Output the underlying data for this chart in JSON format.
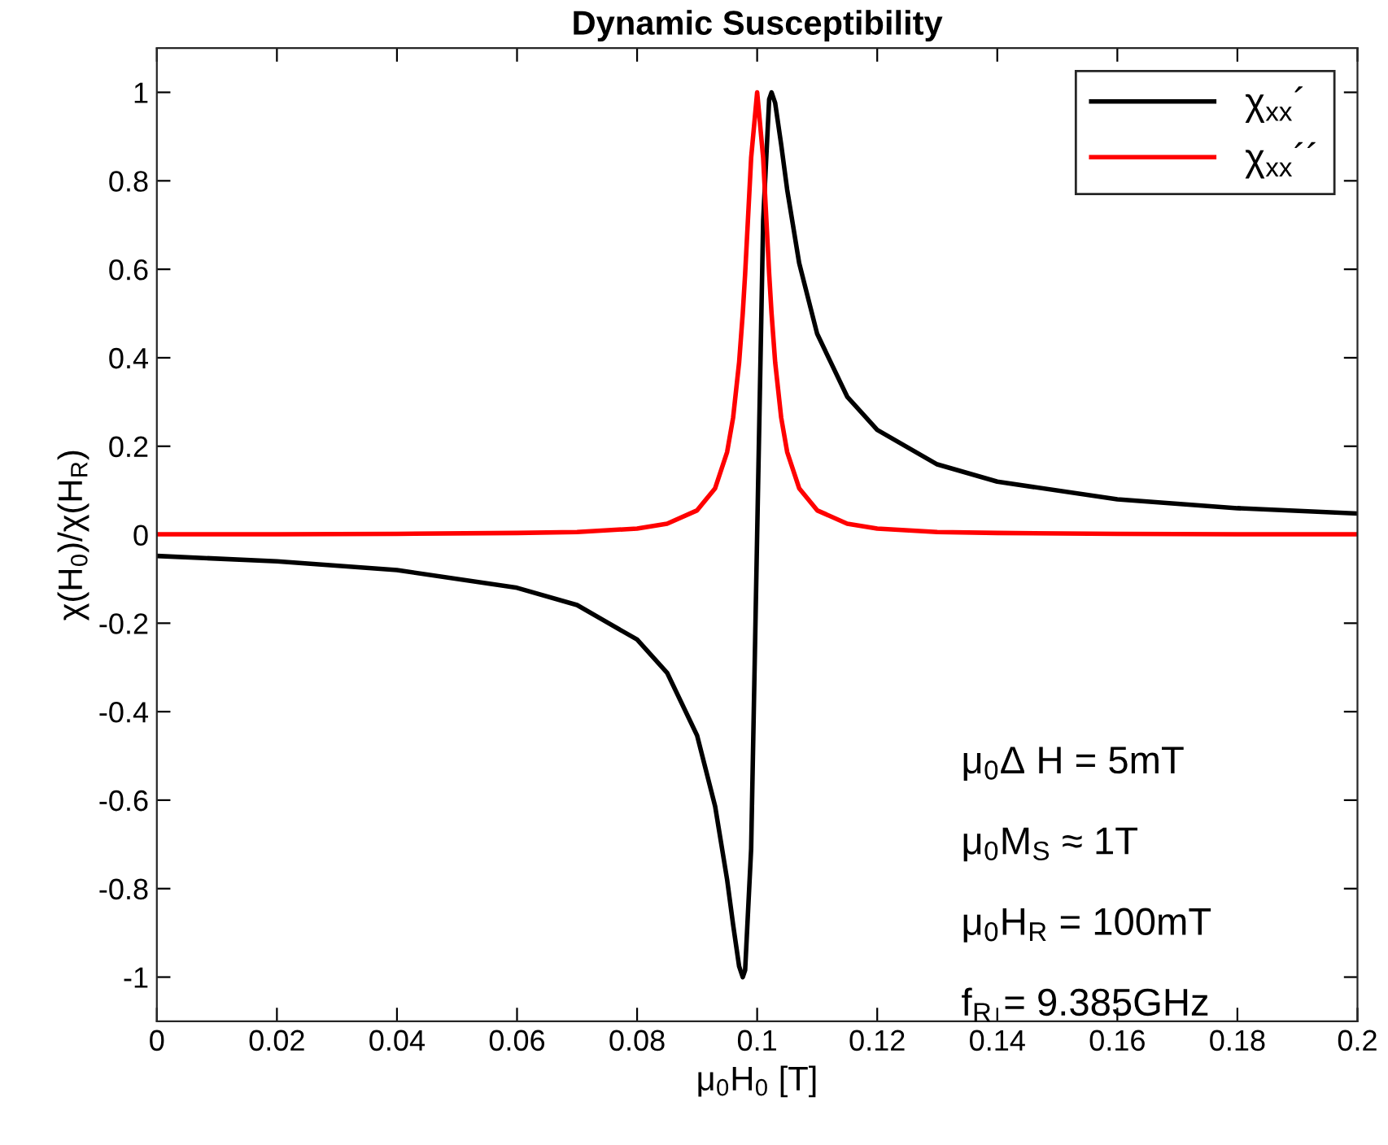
{
  "chart_data": {
    "type": "line",
    "title": "Dynamic Susceptibility",
    "xlabel": "μ$_{0}$H$_{0}$ [T]",
    "ylabel": "χ(H$_{0}$)/χ(H$_{R}$)",
    "x": [
      0,
      0.02,
      0.04,
      0.06,
      0.07,
      0.08,
      0.085,
      0.09,
      0.093,
      0.095,
      0.096,
      0.097,
      0.0976,
      0.098,
      0.099,
      0.1,
      0.101,
      0.102,
      0.1024,
      0.103,
      0.104,
      0.105,
      0.107,
      0.11,
      0.115,
      0.12,
      0.13,
      0.14,
      0.16,
      0.18,
      0.2
    ],
    "series": [
      {
        "name": "χ$_{xx}$´",
        "color": "#000000",
        "values": [
          -0.048,
          -0.06,
          -0.08,
          -0.12,
          -0.159,
          -0.237,
          -0.312,
          -0.454,
          -0.614,
          -0.78,
          -0.882,
          -0.976,
          -1,
          -0.984,
          -0.71,
          0,
          0.71,
          0.984,
          1,
          0.976,
          0.882,
          0.78,
          0.614,
          0.454,
          0.312,
          0.237,
          0.159,
          0.12,
          0.08,
          0.06,
          0.048
        ]
      },
      {
        "name": "χ$_{xx}$´´",
        "color": "#ff0000",
        "values": [
          0.001,
          0.001,
          0.002,
          0.004,
          0.006,
          0.014,
          0.025,
          0.055,
          0.105,
          0.187,
          0.265,
          0.39,
          0.5,
          0.59,
          0.852,
          1,
          0.852,
          0.59,
          0.5,
          0.39,
          0.265,
          0.187,
          0.105,
          0.055,
          0.025,
          0.014,
          0.006,
          0.004,
          0.002,
          0.001,
          0.001
        ]
      }
    ],
    "xlim": [
      0,
      0.2
    ],
    "xticks": [
      0,
      0.02,
      0.04,
      0.06,
      0.08,
      0.1,
      0.12,
      0.14,
      0.16,
      0.18,
      0.2
    ],
    "ylim": [
      -1.1,
      1.1
    ],
    "yticks": [
      -1,
      -0.8,
      -0.6,
      -0.4,
      -0.2,
      0,
      0.2,
      0.4,
      0.6,
      0.8,
      1
    ],
    "annotations": [
      "μ$_{0}$Δ H = 5mT",
      "μ$_{0}$M$_{S}$ ≈ 1T",
      "μ$_{0}$H$_{R}$ = 100mT",
      "f$_{R}$ = 9.385GHz"
    ],
    "legend": "top right",
    "grid": false,
    "line_style": "solid",
    "marker": "none"
  }
}
